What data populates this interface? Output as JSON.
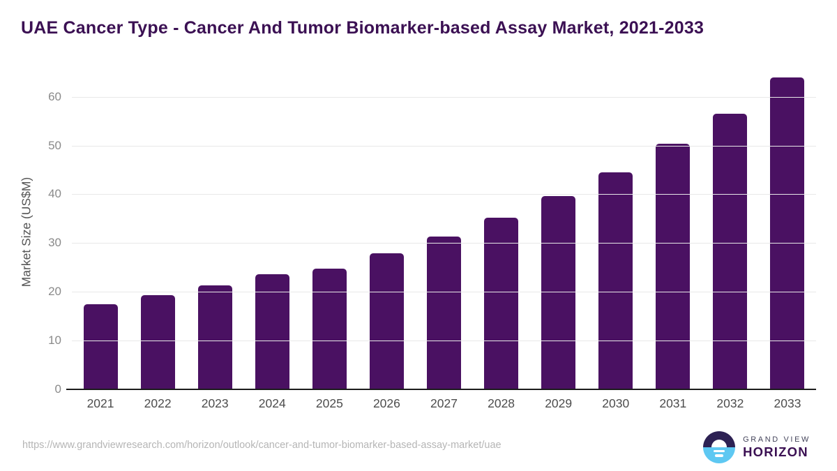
{
  "title": "UAE Cancer Type - Cancer And Tumor Biomarker-based Assay Market, 2021-2033",
  "chart_data": {
    "type": "bar",
    "title": "UAE Cancer Type - Cancer And Tumor Biomarker-based Assay Market, 2021-2033",
    "categories": [
      "2021",
      "2022",
      "2023",
      "2024",
      "2025",
      "2026",
      "2027",
      "2028",
      "2029",
      "2030",
      "2031",
      "2032",
      "2033"
    ],
    "values": [
      17.5,
      19.3,
      21.3,
      23.6,
      24.8,
      27.9,
      31.4,
      35.2,
      39.6,
      44.5,
      50.3,
      56.5,
      64.0
    ],
    "xlabel": "",
    "ylabel": "Market Size (US$M)",
    "ylim": [
      0,
      65
    ],
    "yticks": [
      0,
      10,
      20,
      30,
      40,
      50,
      60
    ],
    "grid": "horizontal-only",
    "legend": "none",
    "bar_color": "#4a1162"
  },
  "footer": {
    "source_url": "https://www.grandviewresearch.com/horizon/outlook/cancer-and-tumor-biomarker-based-assay-market/uae",
    "logo": {
      "line1": "GRAND VIEW",
      "line2": "HORIZON"
    }
  },
  "colors": {
    "title_text": "#3b1053",
    "bar": "#4a1162",
    "gridline": "#e8e8e8",
    "axis_line": "#1c1c1c",
    "ytick_text": "#8a8a8a",
    "xtick_text": "#4d4d4d",
    "url_text": "#b5b5b5",
    "logo_navy": "#2d2153",
    "logo_blue": "#5ec8f2"
  }
}
